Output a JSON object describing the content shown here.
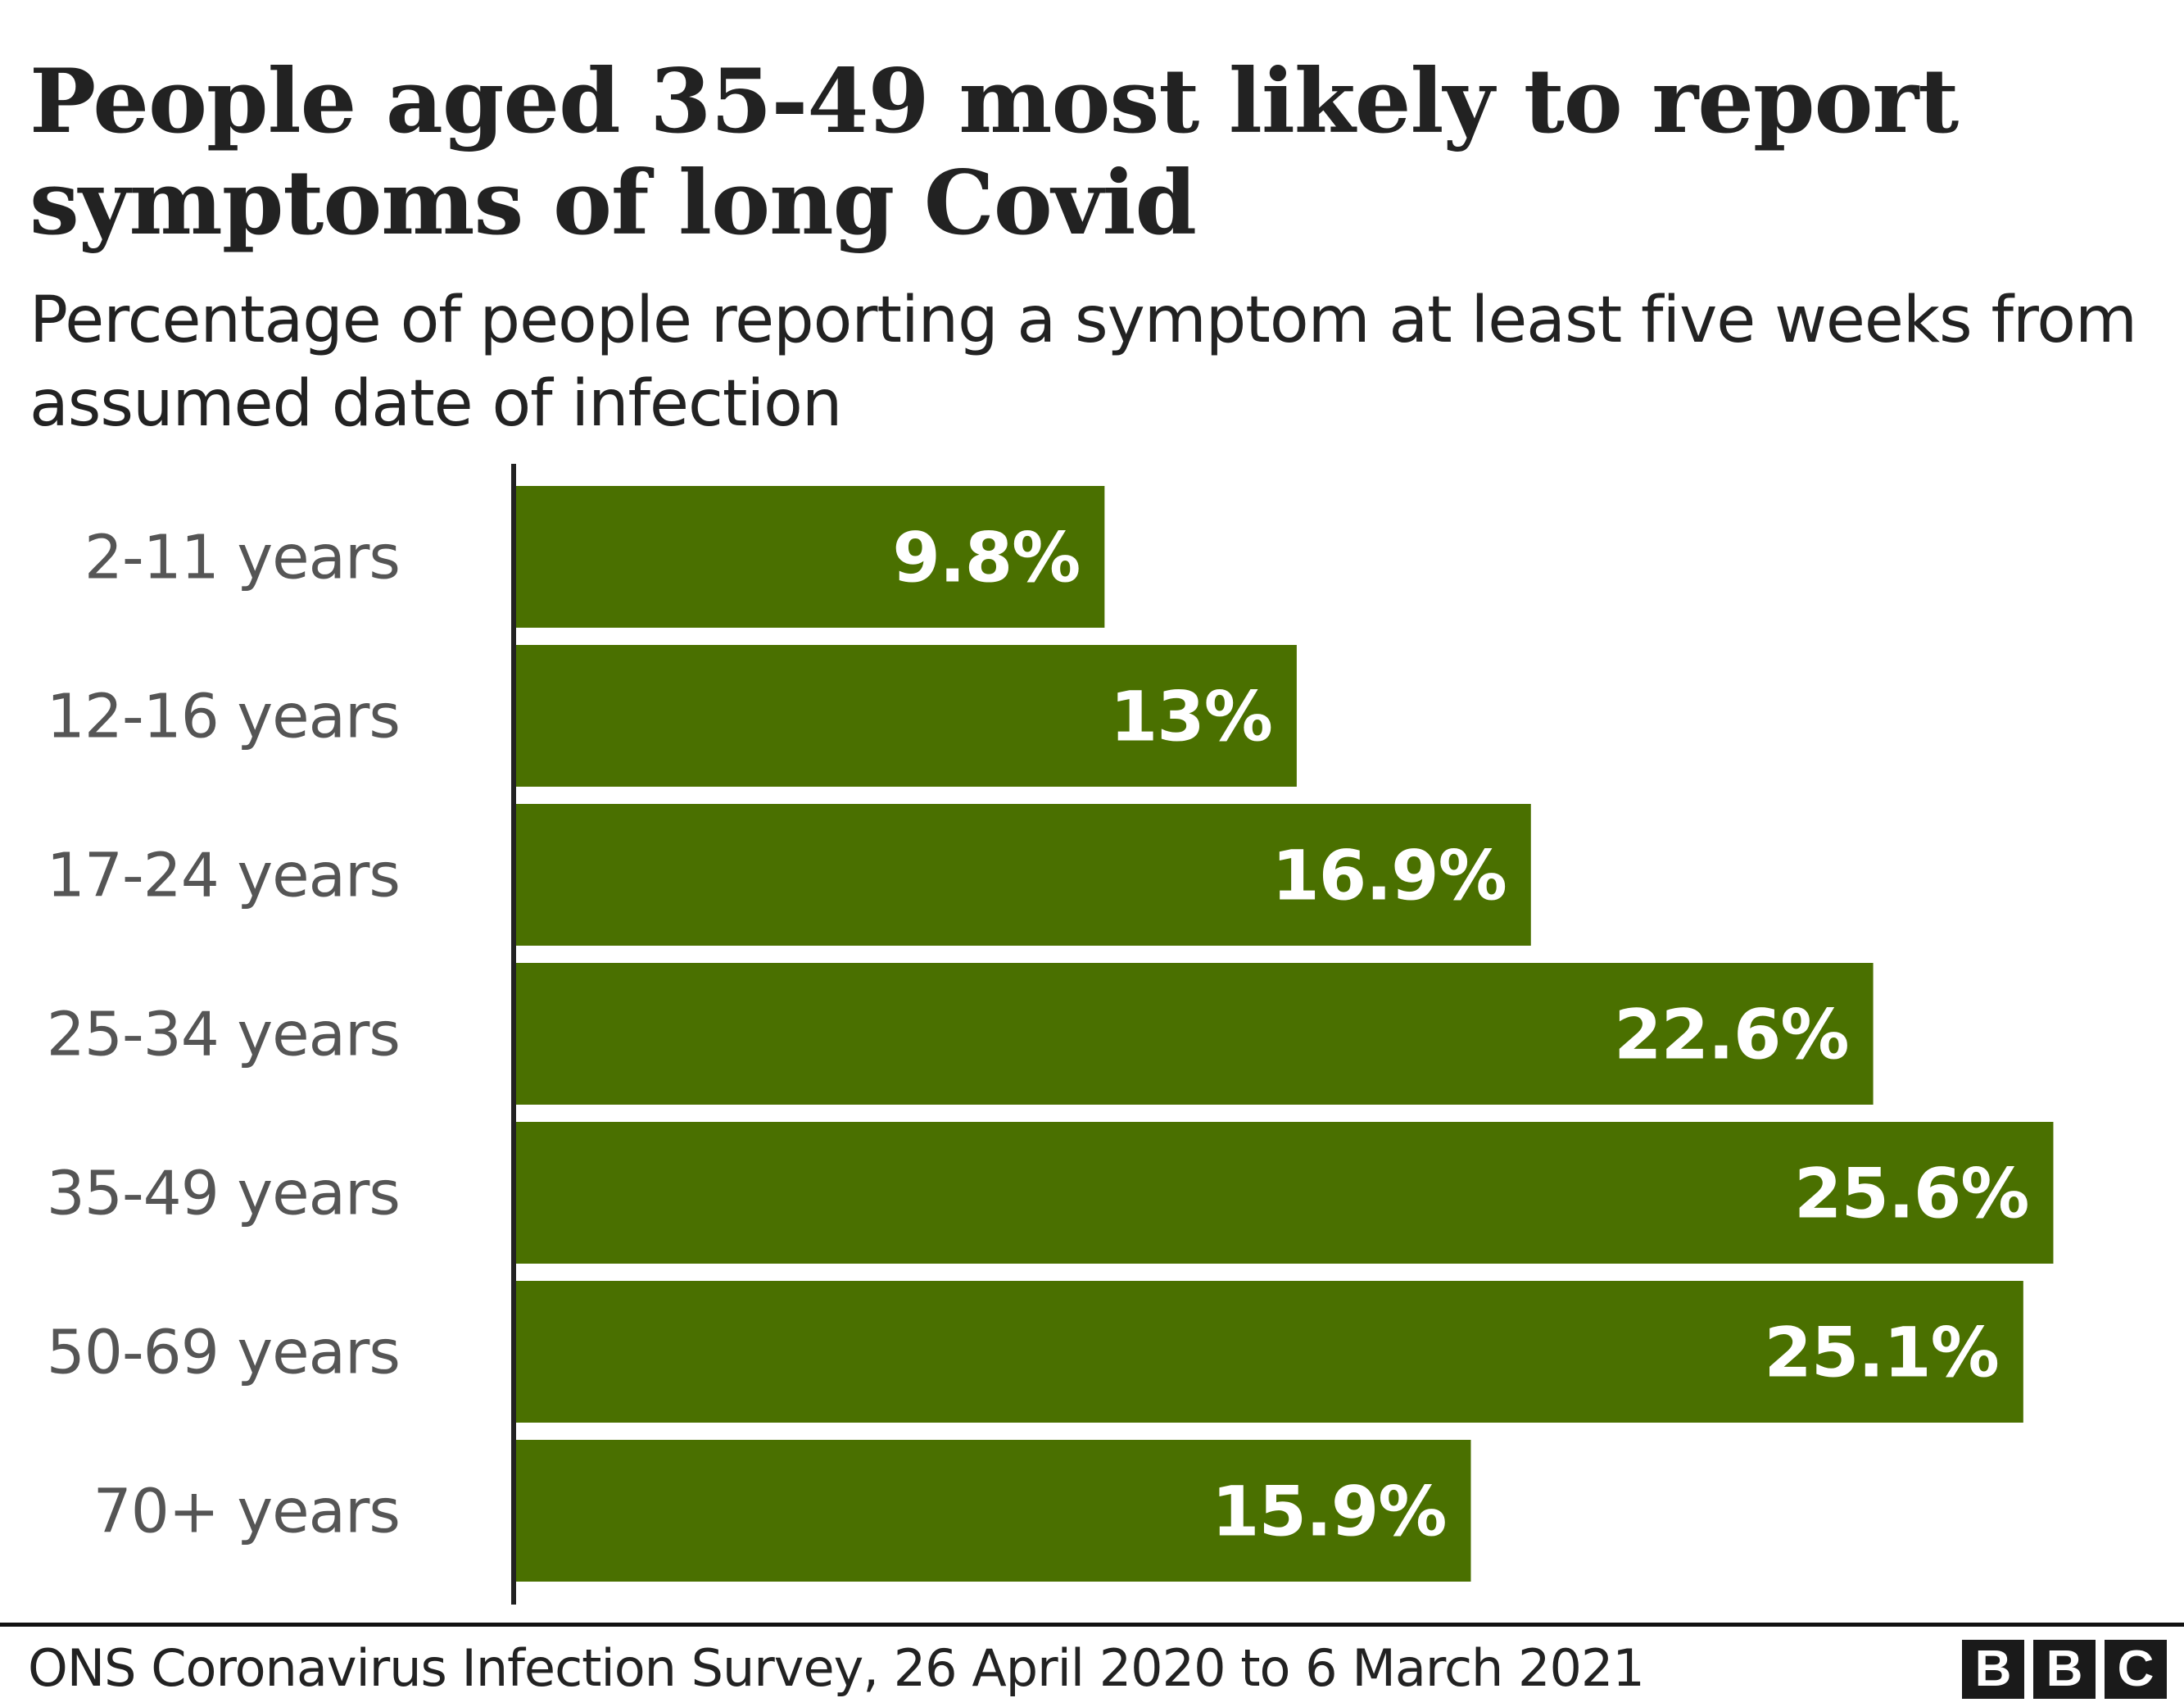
{
  "title": "People aged 35-49 most likely to report symptoms of long Covid",
  "subtitle": "Percentage of people reporting a symptom at least five weeks from assumed date of infection",
  "source": "ONS Coronavirus Infection Survey, 26 April 2020 to 6 March 2021",
  "logo": "BBC",
  "colors": {
    "bar": "#4a7000",
    "label": "#555555",
    "value_text": "#ffffff",
    "axis": "#222222"
  },
  "chart_data": {
    "type": "bar",
    "orientation": "horizontal",
    "title": "People aged 35-49 most likely to report symptoms of long Covid",
    "subtitle": "Percentage of people reporting a symptom at least five weeks from assumed date of infection",
    "categories": [
      "2-11 years",
      "12-16 years",
      "17-24 years",
      "25-34 years",
      "35-49 years",
      "50-69 years",
      "70+ years"
    ],
    "values": [
      9.8,
      13,
      16.9,
      22.6,
      25.6,
      25.1,
      15.9
    ],
    "value_labels": [
      "9.8%",
      "13%",
      "16.9%",
      "22.6%",
      "25.6%",
      "25.1%",
      "15.9%"
    ],
    "xlim": [
      0,
      28.5
    ],
    "grid": false,
    "legend": "none"
  }
}
